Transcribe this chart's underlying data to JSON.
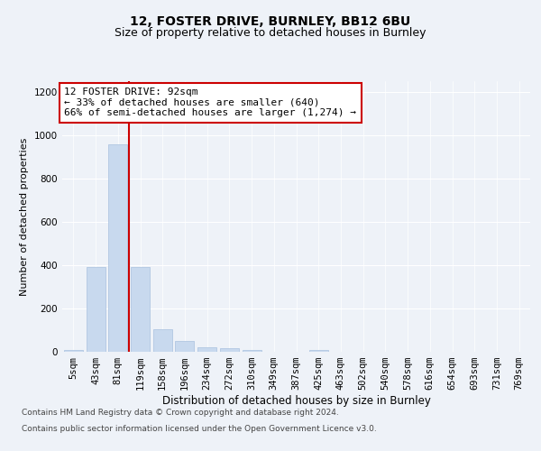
{
  "title1": "12, FOSTER DRIVE, BURNLEY, BB12 6BU",
  "title2": "Size of property relative to detached houses in Burnley",
  "xlabel": "Distribution of detached houses by size in Burnley",
  "ylabel": "Number of detached properties",
  "categories": [
    "5sqm",
    "43sqm",
    "81sqm",
    "119sqm",
    "158sqm",
    "196sqm",
    "234sqm",
    "272sqm",
    "310sqm",
    "349sqm",
    "387sqm",
    "425sqm",
    "463sqm",
    "502sqm",
    "540sqm",
    "578sqm",
    "616sqm",
    "654sqm",
    "693sqm",
    "731sqm",
    "769sqm"
  ],
  "values": [
    10,
    390,
    960,
    390,
    105,
    50,
    22,
    18,
    10,
    0,
    0,
    10,
    0,
    0,
    0,
    0,
    0,
    0,
    0,
    0,
    0
  ],
  "bar_color": "#c8d9ee",
  "bar_edgecolor": "#a8c0de",
  "vline_x": 2.5,
  "vline_color": "#cc0000",
  "annotation_text": "12 FOSTER DRIVE: 92sqm\n← 33% of detached houses are smaller (640)\n66% of semi-detached houses are larger (1,274) →",
  "annotation_box_facecolor": "#ffffff",
  "annotation_box_edgecolor": "#cc0000",
  "ylim": [
    0,
    1250
  ],
  "yticks": [
    0,
    200,
    400,
    600,
    800,
    1000,
    1200
  ],
  "background_color": "#eef2f8",
  "grid_color": "#ffffff",
  "footer_line1": "Contains HM Land Registry data © Crown copyright and database right 2024.",
  "footer_line2": "Contains public sector information licensed under the Open Government Licence v3.0.",
  "title1_fontsize": 10,
  "title2_fontsize": 9,
  "xlabel_fontsize": 8.5,
  "ylabel_fontsize": 8,
  "tick_fontsize": 7.5,
  "annotation_fontsize": 8,
  "footer_fontsize": 6.5
}
